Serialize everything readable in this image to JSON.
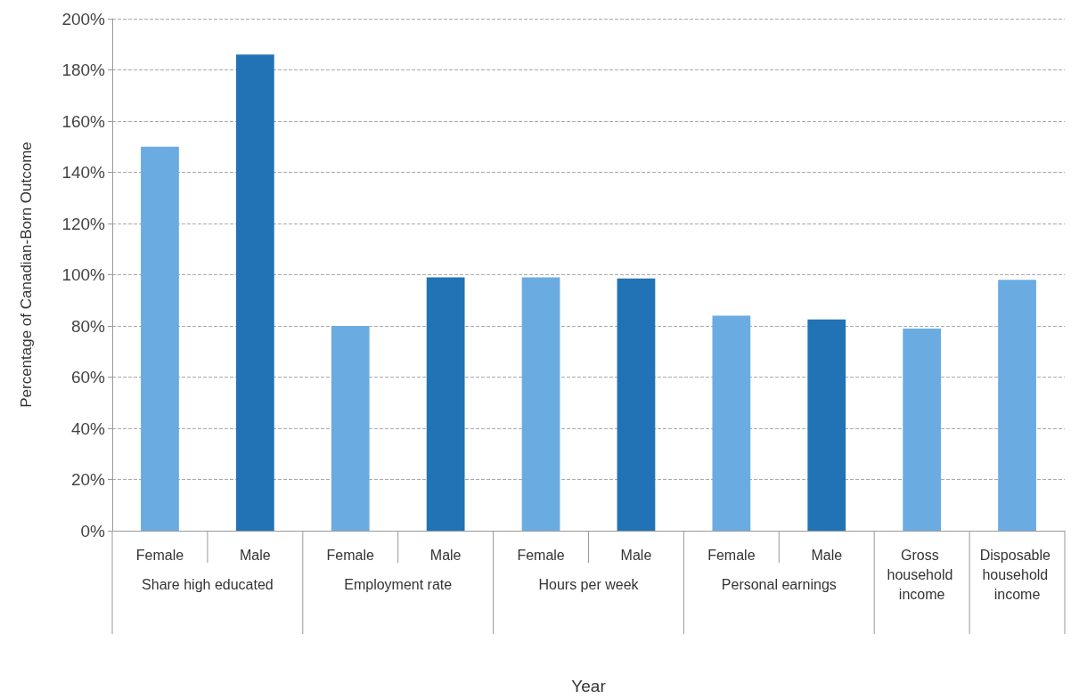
{
  "chart_data": {
    "type": "bar",
    "xlabel": "Year",
    "ylabel": "Percentage of Canadian-Born Outcome",
    "categories": [
      "Female",
      "Male",
      "Female",
      "Male",
      "Female",
      "Male",
      "Female",
      "Male",
      "Gross household income",
      "Disposable household income"
    ],
    "values": [
      150,
      186,
      80,
      99,
      99,
      98.5,
      84,
      82.5,
      79,
      98
    ],
    "colors": [
      "#6aace2",
      "#2273b5",
      "#6aace2",
      "#2273b5",
      "#6aace2",
      "#2273b5",
      "#6aace2",
      "#2273b5",
      "#6aace2",
      "#6aace2"
    ],
    "annotations": [
      "Share high educated",
      "Employment rate",
      "Hours per week",
      "Personal earnings"
    ],
    "ylim": [
      0,
      200
    ],
    "yticks": [
      {
        "value": 0,
        "label": "0%"
      },
      {
        "value": 20,
        "label": "20%"
      },
      {
        "value": 40,
        "label": "40%"
      },
      {
        "value": 60,
        "label": "60%"
      },
      {
        "value": 80,
        "label": "80%"
      },
      {
        "value": 100,
        "label": "100%"
      },
      {
        "value": 120,
        "label": "120%"
      },
      {
        "value": 140,
        "label": "140%"
      },
      {
        "value": 160,
        "label": "160%"
      },
      {
        "value": 180,
        "label": "180%"
      },
      {
        "value": 200,
        "label": "200%"
      }
    ],
    "grid": "y"
  }
}
